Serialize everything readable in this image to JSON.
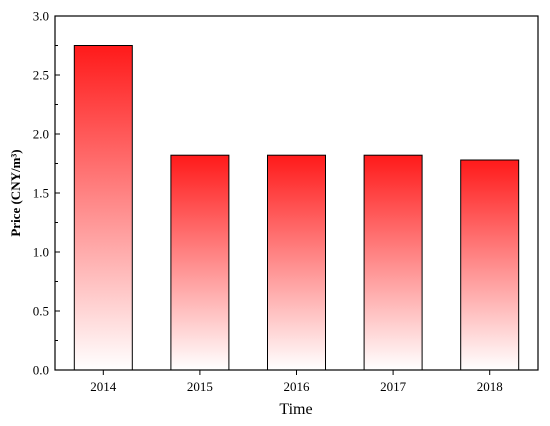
{
  "chart_data": {
    "type": "bar",
    "title": "",
    "xlabel": "Time",
    "ylabel": "Price (CNY/m³)",
    "categories": [
      "2014",
      "2015",
      "2016",
      "2017",
      "2018"
    ],
    "values": [
      2.75,
      1.82,
      1.82,
      1.82,
      1.78
    ],
    "ylim": [
      0.0,
      3.0
    ],
    "yticks": [
      "0.0",
      "0.5",
      "1.0",
      "1.5",
      "2.0",
      "2.5",
      "3.0"
    ],
    "ytick_values": [
      0.0,
      0.5,
      1.0,
      1.5,
      2.0,
      2.5,
      3.0
    ],
    "grid": false,
    "bar_gradient": {
      "top": "#ff1a1a",
      "bottom": "#ffffff"
    },
    "bar_outline": "#000000"
  }
}
